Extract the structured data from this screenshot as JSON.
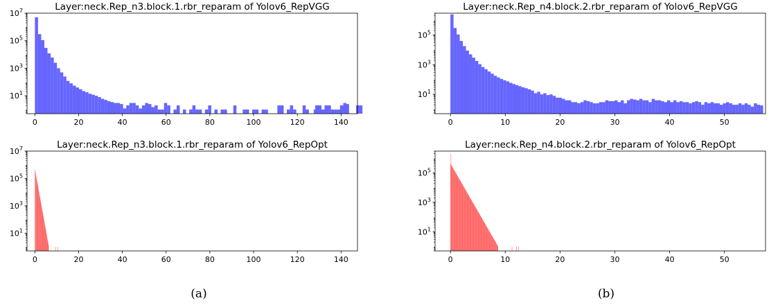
{
  "panel_captions": [
    "(a)",
    "(b)"
  ],
  "chart_data": [
    {
      "type": "histogram",
      "title": "Layer:neck.Rep_n3.block.1.rbr_reparam of Yolov6_RepVGG",
      "color": "#6666ff",
      "yscale": "log",
      "xlim": [
        -3.6,
        147.5
      ],
      "ylim": [
        0.5,
        10000000
      ],
      "xticks": [
        0,
        20,
        40,
        60,
        80,
        100,
        120,
        140
      ],
      "ytick_labels": [
        {
          "value": 10,
          "label": "10^1"
        },
        {
          "value": 1000,
          "label": "10^3"
        },
        {
          "value": 100000,
          "label": "10^5"
        },
        {
          "value": 10000000,
          "label": "10^7"
        }
      ],
      "bin_width": 1.44,
      "bin_start": 0,
      "counts": [
        5000000,
        300000,
        110000,
        30000,
        12000,
        6000,
        2500,
        1000,
        500,
        250,
        120,
        80,
        55,
        40,
        30,
        22,
        18,
        14,
        12,
        10,
        8,
        6,
        5,
        4,
        3.5,
        3,
        3,
        2.5,
        1.2,
        2,
        3,
        3,
        2,
        1.2,
        2,
        3,
        2.5,
        1.5,
        2,
        1,
        1,
        3,
        2,
        0,
        1,
        2,
        0,
        1,
        0,
        1,
        2,
        1,
        1,
        0,
        1,
        2,
        0,
        1,
        0,
        1,
        1,
        0,
        0,
        2,
        0,
        0,
        1,
        1,
        0,
        1,
        1,
        0,
        1,
        1,
        0,
        0,
        0,
        2,
        2,
        0,
        1,
        2,
        1,
        0,
        0,
        2,
        1,
        0,
        0,
        2,
        2,
        1,
        2,
        2,
        1,
        1,
        1,
        2,
        2,
        0,
        0,
        0,
        2,
        2
      ],
      "extra_bars": [
        {
          "x": 127.5,
          "value": 1
        },
        {
          "x": 132.5,
          "value": 2
        },
        {
          "x": 139.5,
          "value": 2
        },
        {
          "x": 141,
          "value": 3
        },
        {
          "x": 142.2,
          "value": 2.5
        }
      ]
    },
    {
      "type": "histogram",
      "title": "Layer:neck.Rep_n4.block.2.rbr_reparam of Yolov6_RepVGG",
      "color": "#6666ff",
      "yscale": "log",
      "xlim": [
        -2.8,
        57.5
      ],
      "ylim": [
        0.5,
        3000000
      ],
      "xticks": [
        0,
        10,
        20,
        30,
        40,
        50
      ],
      "ytick_labels": [
        {
          "value": 10,
          "label": "10^1"
        },
        {
          "value": 1000,
          "label": "10^3"
        },
        {
          "value": 100000,
          "label": "10^5"
        }
      ],
      "bin_width": 0.565,
      "bin_start": 0,
      "counts": [
        2500000,
        300000,
        110000,
        40000,
        18000,
        9000,
        5000,
        3000,
        1800,
        1100,
        700,
        500,
        350,
        250,
        180,
        140,
        110,
        90,
        75,
        60,
        50,
        42,
        36,
        30,
        26,
        22,
        18,
        12,
        15,
        10,
        12,
        9,
        10,
        8,
        6,
        6,
        5,
        4,
        4,
        3,
        3,
        2.5,
        3,
        4,
        3.5,
        3,
        2.5,
        2.5,
        3,
        3,
        4,
        3.5,
        3.5,
        4,
        3,
        4,
        2.5,
        4,
        5,
        4.5,
        4,
        5,
        4,
        4,
        3,
        5,
        4,
        4,
        3.5,
        3,
        4,
        3,
        4,
        3,
        3.5,
        3,
        3,
        2.5,
        3,
        3.5,
        3,
        2,
        3,
        2.5,
        3,
        2.5,
        2.5,
        2,
        2.5,
        3,
        2.5,
        2,
        2,
        2.5,
        2,
        2.5,
        2,
        1.5,
        2.5,
        2,
        1.8
      ]
    },
    {
      "type": "histogram",
      "title": "Layer:neck.Rep_n3.block.1.rbr_reparam of Yolov6_RepOpt",
      "color": "#ff6666",
      "yscale": "log",
      "xlim": [
        -3.6,
        147.5
      ],
      "ylim": [
        0.5,
        10000000
      ],
      "xticks": [
        0,
        20,
        40,
        60,
        80,
        100,
        120,
        140
      ],
      "ytick_labels": [
        {
          "value": 10,
          "label": "10^1"
        },
        {
          "value": 1000,
          "label": "10^3"
        },
        {
          "value": 100000,
          "label": "10^5"
        },
        {
          "value": 10000000,
          "label": "10^7"
        }
      ],
      "bin_width": 0.14,
      "bin_start": 0,
      "decay": {
        "start": 400000,
        "per_bin": 0.75,
        "span": 70
      },
      "extra_bars": [
        {
          "x": 9.3,
          "value": 1
        },
        {
          "x": 10.3,
          "value": 1
        }
      ]
    },
    {
      "type": "histogram",
      "title": "Layer:neck.Rep_n4.block.2.rbr_reparam of Yolov6_RepOpt",
      "color": "#ff6666",
      "yscale": "log",
      "xlim": [
        -2.8,
        57.5
      ],
      "ylim": [
        0.5,
        3000000
      ],
      "xticks": [
        0,
        10,
        20,
        30,
        40,
        50
      ],
      "ytick_labels": [
        {
          "value": 10,
          "label": "10^1"
        },
        {
          "value": 1000,
          "label": "10^3"
        },
        {
          "value": 100000,
          "label": "10^5"
        }
      ],
      "bin_width": 0.056,
      "bin_start": 0,
      "decay": {
        "start": 400000,
        "per_bin": 0.92,
        "span": 200
      },
      "extra_bars": [
        {
          "x": 0.05,
          "value": 2000000
        },
        {
          "x": 11.2,
          "value": 1
        },
        {
          "x": 12.0,
          "value": 1
        },
        {
          "x": 12.4,
          "value": 1
        }
      ]
    }
  ]
}
